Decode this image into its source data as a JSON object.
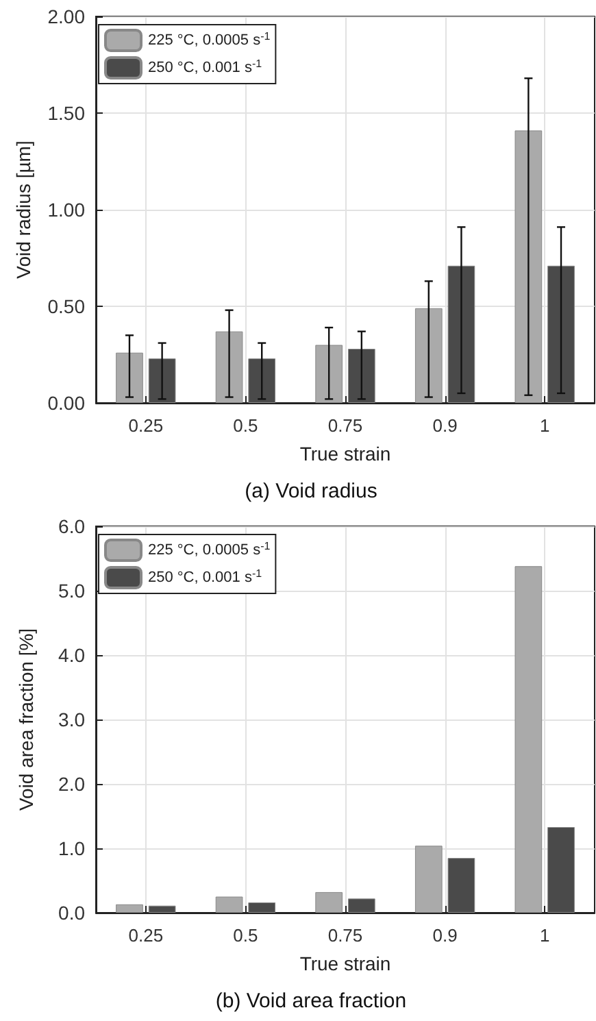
{
  "chart_data": [
    {
      "type": "bar",
      "title": "(a) Void radius",
      "xlabel": "True strain",
      "ylabel": "Void radius [µm]",
      "categories": [
        "0.25",
        "0.5",
        "0.75",
        "0.9",
        "1"
      ],
      "series": [
        {
          "name": "225 °C, 0.0005 s$^{-1}$",
          "color": "#aaaaaa",
          "values": [
            0.26,
            0.37,
            0.3,
            0.49,
            1.41
          ],
          "errors": [
            [
              0.03,
              0.35
            ],
            [
              0.03,
              0.48
            ],
            [
              0.02,
              0.39
            ],
            [
              0.03,
              0.63
            ],
            [
              0.04,
              1.68
            ]
          ]
        },
        {
          "name": "250 °C, 0.001 s$^{-1}$",
          "color": "#4a4a4a",
          "values": [
            0.23,
            0.23,
            0.28,
            0.71,
            0.71
          ],
          "errors": [
            [
              0.02,
              0.31
            ],
            [
              0.02,
              0.31
            ],
            [
              0.02,
              0.37
            ],
            [
              0.05,
              0.91
            ],
            [
              0.05,
              0.91
            ]
          ]
        }
      ],
      "ylim": [
        0,
        2
      ],
      "yticks": [
        {
          "value": 0,
          "label": "0.00"
        },
        {
          "value": 0.5,
          "label": "0.50"
        },
        {
          "value": 1,
          "label": "1.00"
        },
        {
          "value": 1.5,
          "label": "1.50"
        },
        {
          "value": 2,
          "label": "2.00"
        }
      ],
      "grid": true,
      "legend": "top left"
    },
    {
      "type": "bar",
      "title": "(b) Void area fraction",
      "xlabel": "True strain",
      "ylabel": "Void area fraction [%]",
      "categories": [
        "0.25",
        "0.5",
        "0.75",
        "0.9",
        "1"
      ],
      "series": [
        {
          "name": "225 °C, 0.0005 s$^{-1}$",
          "color": "#aaaaaa",
          "values": [
            0.13,
            0.25,
            0.32,
            1.04,
            5.38
          ]
        },
        {
          "name": "250 °C, 0.001 s$^{-1}$",
          "color": "#4a4a4a",
          "values": [
            0.11,
            0.16,
            0.22,
            0.85,
            1.33
          ]
        }
      ],
      "ylim": [
        0,
        6
      ],
      "yticks": [
        {
          "value": 0,
          "label": "0.0"
        },
        {
          "value": 1,
          "label": "1.0"
        },
        {
          "value": 2,
          "label": "2.0"
        },
        {
          "value": 3,
          "label": "3.0"
        },
        {
          "value": 4,
          "label": "4.0"
        },
        {
          "value": 5,
          "label": "5.0"
        },
        {
          "value": 6,
          "label": "6.0"
        }
      ],
      "grid": true,
      "legend": "top left"
    }
  ]
}
